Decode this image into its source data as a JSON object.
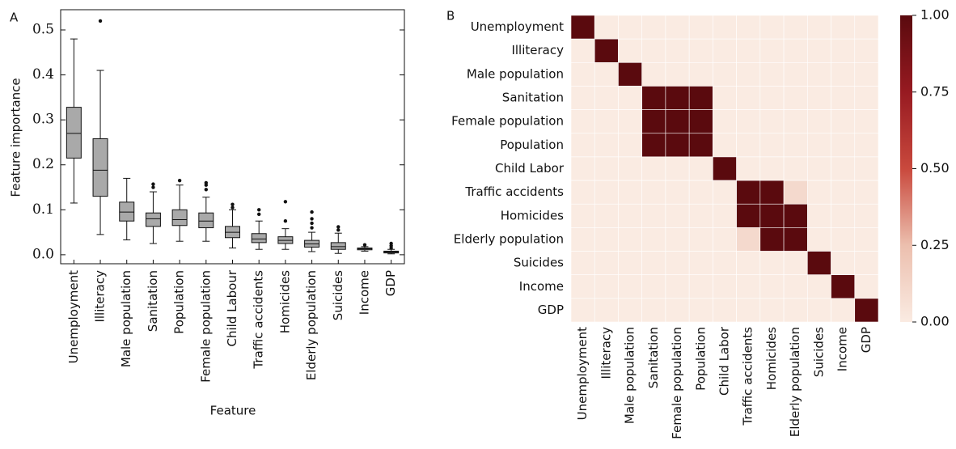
{
  "chart_data": [
    {
      "type": "box",
      "panel_label": "A",
      "xlabel": "Feature",
      "ylabel": "Feature importance",
      "categories": [
        "Unemployment",
        "Illiteracy",
        "Male population",
        "Sanitation",
        "Population",
        "Female population",
        "Child Labour",
        "Traffic accidents",
        "Homicides",
        "Elderly population",
        "Suicides",
        "Income",
        "GDP"
      ],
      "boxes": [
        {
          "low": 0.115,
          "q1": 0.215,
          "median": 0.27,
          "q3": 0.328,
          "high": 0.48,
          "outliers": []
        },
        {
          "low": 0.045,
          "q1": 0.13,
          "median": 0.188,
          "q3": 0.258,
          "high": 0.41,
          "outliers": [
            0.52
          ]
        },
        {
          "low": 0.033,
          "q1": 0.075,
          "median": 0.095,
          "q3": 0.117,
          "high": 0.17,
          "outliers": []
        },
        {
          "low": 0.025,
          "q1": 0.063,
          "median": 0.08,
          "q3": 0.093,
          "high": 0.14,
          "outliers": [
            0.15,
            0.157
          ]
        },
        {
          "low": 0.03,
          "q1": 0.065,
          "median": 0.078,
          "q3": 0.1,
          "high": 0.155,
          "outliers": [
            0.165
          ]
        },
        {
          "low": 0.03,
          "q1": 0.06,
          "median": 0.075,
          "q3": 0.093,
          "high": 0.128,
          "outliers": [
            0.145,
            0.155,
            0.16
          ]
        },
        {
          "low": 0.015,
          "q1": 0.038,
          "median": 0.05,
          "q3": 0.063,
          "high": 0.1,
          "outliers": [
            0.105,
            0.112
          ]
        },
        {
          "low": 0.012,
          "q1": 0.027,
          "median": 0.035,
          "q3": 0.047,
          "high": 0.075,
          "outliers": [
            0.09,
            0.1
          ]
        },
        {
          "low": 0.012,
          "q1": 0.025,
          "median": 0.032,
          "q3": 0.04,
          "high": 0.058,
          "outliers": [
            0.075,
            0.118
          ]
        },
        {
          "low": 0.007,
          "q1": 0.017,
          "median": 0.024,
          "q3": 0.032,
          "high": 0.05,
          "outliers": [
            0.06,
            0.07,
            0.08,
            0.095
          ]
        },
        {
          "low": 0.003,
          "q1": 0.012,
          "median": 0.018,
          "q3": 0.027,
          "high": 0.048,
          "outliers": [
            0.055,
            0.062
          ]
        },
        {
          "low": 0.008,
          "q1": 0.011,
          "median": 0.013,
          "q3": 0.015,
          "high": 0.018,
          "outliers": [
            0.022
          ]
        },
        {
          "low": 0.002,
          "q1": 0.004,
          "median": 0.006,
          "q3": 0.008,
          "high": 0.012,
          "outliers": [
            0.015,
            0.02,
            0.025
          ]
        }
      ],
      "color": "#a9a9a9",
      "ylim": [
        -0.02,
        0.545
      ],
      "yticks": [
        {
          "value": 0,
          "label": "0.0"
        },
        0.1,
        0.2,
        0.3,
        0.4,
        0.5
      ]
    },
    {
      "type": "heatmap",
      "panel_label": "B",
      "rows": [
        "Unemployment",
        "Illiteracy",
        "Male population",
        "Sanitation",
        "Female population",
        "Population",
        "Child Labor",
        "Traffic accidents",
        "Homicides",
        "Elderly population",
        "Suicides",
        "Income",
        "GDP"
      ],
      "columns": [
        "Unemployment",
        "Illiteracy",
        "Male population",
        "Sanitation",
        "Female population",
        "Population",
        "Child Labor",
        "Traffic accidents",
        "Homicides",
        "Elderly population",
        "Suicides",
        "Income",
        "GDP"
      ],
      "values": [
        [
          1,
          0,
          0,
          0,
          0,
          0,
          0,
          0,
          0,
          0,
          0,
          0,
          0
        ],
        [
          0,
          1,
          0,
          0,
          0,
          0,
          0,
          0,
          0,
          0,
          0,
          0,
          0
        ],
        [
          0,
          0,
          1,
          0,
          0,
          0,
          0,
          0,
          0,
          0,
          0,
          0,
          0
        ],
        [
          0,
          0,
          0,
          1,
          1,
          1,
          0,
          0,
          0,
          0,
          0,
          0,
          0
        ],
        [
          0,
          0,
          0,
          1,
          1,
          1,
          0,
          0,
          0,
          0,
          0,
          0,
          0
        ],
        [
          0,
          0,
          0,
          1,
          1,
          1,
          0,
          0,
          0,
          0,
          0,
          0,
          0
        ],
        [
          0,
          0,
          0,
          0,
          0,
          0,
          1,
          0,
          0,
          0,
          0,
          0,
          0
        ],
        [
          0,
          0,
          0,
          0,
          0,
          0,
          0,
          1,
          1,
          0.1,
          0,
          0,
          0
        ],
        [
          0,
          0,
          0,
          0,
          0,
          0,
          0,
          1,
          1,
          1,
          0,
          0,
          0
        ],
        [
          0,
          0,
          0,
          0,
          0,
          0,
          0,
          0.1,
          1,
          1,
          0,
          0,
          0
        ],
        [
          0,
          0,
          0,
          0,
          0,
          0,
          0,
          0,
          0,
          0,
          1,
          0,
          0
        ],
        [
          0,
          0,
          0,
          0,
          0,
          0,
          0,
          0,
          0,
          0,
          0,
          1,
          0
        ],
        [
          0,
          0,
          0,
          0,
          0,
          0,
          0,
          0,
          0,
          0,
          0,
          0,
          1
        ]
      ],
      "colors": [
        "#faebe2",
        "#ecbfae",
        "#c9493d",
        "#971a21",
        "#5a0a0e"
      ],
      "clim": [
        0,
        1
      ],
      "cticks": [
        {
          "value": 0,
          "label": "0.00"
        },
        {
          "value": 0.25,
          "label": "0.25"
        },
        {
          "value": 0.5,
          "label": "0.50"
        },
        {
          "value": 0.75,
          "label": "0.75"
        },
        {
          "value": 1,
          "label": "1.00"
        }
      ]
    }
  ]
}
